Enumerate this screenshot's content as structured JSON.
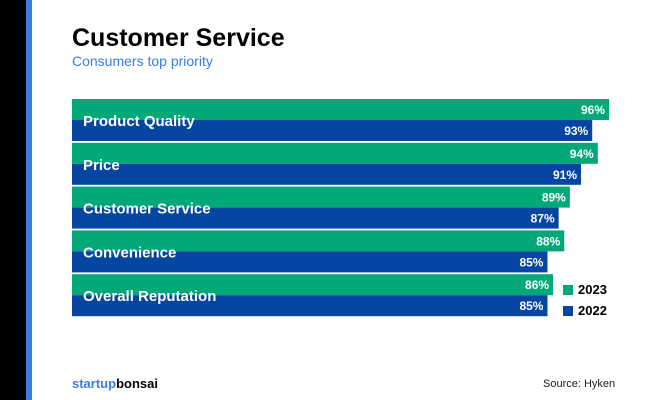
{
  "chart_data": {
    "type": "bar",
    "orientation": "horizontal",
    "title": "Customer Service",
    "subtitle": "Consumers top priority",
    "categories": [
      "Product Quality",
      "Price",
      "Customer Service",
      "Convenience",
      "Overall Reputation"
    ],
    "series": [
      {
        "name": "2023",
        "color": "#03a878",
        "values": [
          96,
          94,
          89,
          88,
          86
        ]
      },
      {
        "name": "2022",
        "color": "#0546a3",
        "values": [
          93,
          91,
          87,
          85,
          85
        ]
      }
    ],
    "unit": "%",
    "xlim": [
      0,
      100
    ],
    "grid": false,
    "legend": "bottom-right"
  },
  "footer": {
    "logo_a": "startup",
    "logo_b": "bonsai",
    "source": "Source: Hyken"
  }
}
